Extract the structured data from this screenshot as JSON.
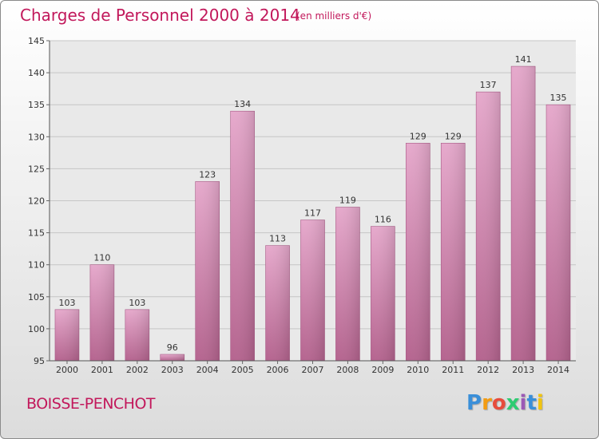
{
  "header": {
    "title": "Charges de Personnel 2000 à 2014",
    "subtitle": "(en milliers d'€)"
  },
  "footer": {
    "commune": "BOISSE-PENCHOT",
    "logo_letters": [
      "P",
      "r",
      "o",
      "x",
      "i",
      "t",
      "i"
    ],
    "logo_colors": [
      "#3a8fd9",
      "#f39c12",
      "#e74c3c",
      "#2ecc71",
      "#9b59b6",
      "#3a8fd9",
      "#f1c40f"
    ]
  },
  "chart_data": {
    "type": "bar",
    "title": "Charges de Personnel 2000 à 2014",
    "subtitle": "(en milliers d'€)",
    "categories": [
      "2000",
      "2001",
      "2002",
      "2003",
      "2004",
      "2005",
      "2006",
      "2007",
      "2008",
      "2009",
      "2010",
      "2011",
      "2012",
      "2013",
      "2014"
    ],
    "values": [
      103,
      110,
      103,
      96,
      123,
      134,
      113,
      117,
      119,
      116,
      129,
      129,
      137,
      141,
      135
    ],
    "ylim": [
      95,
      145
    ],
    "yticks": [
      95,
      100,
      105,
      110,
      115,
      120,
      125,
      130,
      135,
      140,
      145
    ],
    "grid": true,
    "bar_color": "#d98fba",
    "bar_color_light": "#e6a9cc",
    "bar_color_dark": "#b5648f"
  }
}
